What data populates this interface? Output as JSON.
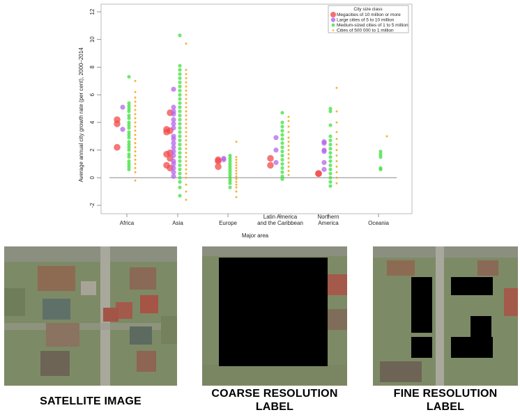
{
  "chart_data": {
    "type": "scatter",
    "ylabel": "Average annual city growth rate (per cent), 2000–2014",
    "xlabel": "Major area",
    "ylim": [
      -2.5,
      12.5
    ],
    "yticks": [
      -2,
      0,
      2,
      4,
      6,
      8,
      10,
      12
    ],
    "categories": [
      "Africa",
      "Asia",
      "Europe",
      "Latin America\nand the Caribbean",
      "Northern\nAmerica",
      "Oceania"
    ],
    "legend": {
      "title": "City size class",
      "position": "top-right",
      "entries": [
        {
          "label": "Megacities of 10 million or more",
          "color": "#f24b4b"
        },
        {
          "label": "Large cities of 5 to 10 million",
          "color": "#b566e8"
        },
        {
          "label": "Medium-sized cities of 1 to 5 million",
          "color": "#3de03d"
        },
        {
          "label": "Cities of 500 000 to 1 million",
          "color": "#f2a51a"
        }
      ]
    },
    "series": [
      {
        "name": "Megacities of 10 million or more",
        "points": [
          [
            0,
            4.2
          ],
          [
            0,
            3.9
          ],
          [
            0,
            2.2
          ],
          [
            1,
            4.7
          ],
          [
            1,
            3.5
          ],
          [
            1,
            3.4
          ],
          [
            1,
            3.3
          ],
          [
            1,
            1.8
          ],
          [
            1,
            1.7
          ],
          [
            1,
            1.4
          ],
          [
            1,
            0.9
          ],
          [
            1,
            0.7
          ],
          [
            2,
            1.3
          ],
          [
            2,
            1.2
          ],
          [
            2,
            0.8
          ],
          [
            3,
            1.4
          ],
          [
            3,
            0.9
          ],
          [
            4,
            0.3
          ],
          [
            4,
            0.3
          ]
        ]
      },
      {
        "name": "Large cities of 5 to 10 million",
        "points": [
          [
            0,
            5.1
          ],
          [
            0,
            3.5
          ],
          [
            1,
            6.4
          ],
          [
            1,
            5.1
          ],
          [
            1,
            4.8
          ],
          [
            1,
            4.6
          ],
          [
            1,
            4.2
          ],
          [
            1,
            3.9
          ],
          [
            1,
            3.6
          ],
          [
            1,
            3.0
          ],
          [
            1,
            2.8
          ],
          [
            1,
            2.5
          ],
          [
            1,
            2.2
          ],
          [
            1,
            1.9
          ],
          [
            1,
            1.6
          ],
          [
            1,
            1.2
          ],
          [
            1,
            1.0
          ],
          [
            1,
            0.7
          ],
          [
            1,
            0.4
          ],
          [
            1,
            0.1
          ],
          [
            2,
            1.4
          ],
          [
            2,
            1.3
          ],
          [
            3,
            2.9
          ],
          [
            3,
            2.0
          ],
          [
            3,
            1.1
          ],
          [
            4,
            2.6
          ],
          [
            4,
            2.5
          ],
          [
            4,
            2.0
          ],
          [
            4,
            1.9
          ],
          [
            4,
            1.1
          ],
          [
            4,
            0.6
          ]
        ]
      },
      {
        "name": "Medium-sized cities of 1 to 5 million",
        "points": [
          [
            0,
            7.3
          ],
          [
            0,
            5.4
          ],
          [
            0,
            5.2
          ],
          [
            0,
            5.0
          ],
          [
            0,
            4.8
          ],
          [
            0,
            4.5
          ],
          [
            0,
            4.3
          ],
          [
            0,
            4.0
          ],
          [
            0,
            3.8
          ],
          [
            0,
            3.6
          ],
          [
            0,
            3.3
          ],
          [
            0,
            3.1
          ],
          [
            0,
            2.9
          ],
          [
            0,
            2.6
          ],
          [
            0,
            2.4
          ],
          [
            0,
            2.2
          ],
          [
            0,
            2.0
          ],
          [
            0,
            1.7
          ],
          [
            0,
            1.5
          ],
          [
            0,
            1.2
          ],
          [
            0,
            1.0
          ],
          [
            0,
            0.8
          ],
          [
            0,
            0.6
          ],
          [
            1,
            10.3
          ],
          [
            1,
            8.1
          ],
          [
            1,
            7.8
          ],
          [
            1,
            7.5
          ],
          [
            1,
            7.2
          ],
          [
            1,
            6.9
          ],
          [
            1,
            6.6
          ],
          [
            1,
            6.3
          ],
          [
            1,
            6.0
          ],
          [
            1,
            5.7
          ],
          [
            1,
            5.4
          ],
          [
            1,
            5.1
          ],
          [
            1,
            4.8
          ],
          [
            1,
            4.5
          ],
          [
            1,
            4.2
          ],
          [
            1,
            3.9
          ],
          [
            1,
            3.6
          ],
          [
            1,
            3.3
          ],
          [
            1,
            3.0
          ],
          [
            1,
            2.7
          ],
          [
            1,
            2.4
          ],
          [
            1,
            2.1
          ],
          [
            1,
            1.8
          ],
          [
            1,
            1.5
          ],
          [
            1,
            1.2
          ],
          [
            1,
            0.9
          ],
          [
            1,
            0.6
          ],
          [
            1,
            0.3
          ],
          [
            1,
            0.0
          ],
          [
            1,
            -0.3
          ],
          [
            1,
            -0.7
          ],
          [
            1,
            -1.3
          ],
          [
            2,
            1.6
          ],
          [
            2,
            1.4
          ],
          [
            2,
            1.2
          ],
          [
            2,
            1.0
          ],
          [
            2,
            0.8
          ],
          [
            2,
            0.6
          ],
          [
            2,
            0.4
          ],
          [
            2,
            0.2
          ],
          [
            2,
            0.0
          ],
          [
            2,
            -0.2
          ],
          [
            2,
            -0.4
          ],
          [
            2,
            -0.7
          ],
          [
            3,
            4.7
          ],
          [
            3,
            4.0
          ],
          [
            3,
            3.7
          ],
          [
            3,
            3.4
          ],
          [
            3,
            3.1
          ],
          [
            3,
            2.8
          ],
          [
            3,
            2.5
          ],
          [
            3,
            2.2
          ],
          [
            3,
            1.9
          ],
          [
            3,
            1.6
          ],
          [
            3,
            1.3
          ],
          [
            3,
            1.0
          ],
          [
            3,
            0.7
          ],
          [
            3,
            0.4
          ],
          [
            3,
            0.1
          ],
          [
            3,
            -0.1
          ],
          [
            4,
            5.0
          ],
          [
            4,
            4.8
          ],
          [
            4,
            3.8
          ],
          [
            4,
            3.0
          ],
          [
            4,
            2.7
          ],
          [
            4,
            2.4
          ],
          [
            4,
            2.1
          ],
          [
            4,
            1.8
          ],
          [
            4,
            1.5
          ],
          [
            4,
            1.2
          ],
          [
            4,
            0.9
          ],
          [
            4,
            0.6
          ],
          [
            4,
            0.3
          ],
          [
            4,
            0.0
          ],
          [
            4,
            -0.3
          ],
          [
            4,
            -0.6
          ],
          [
            5,
            1.9
          ],
          [
            5,
            1.7
          ],
          [
            5,
            1.5
          ],
          [
            5,
            0.7
          ],
          [
            5,
            0.6
          ]
        ]
      },
      {
        "name": "Cities of 500 000 to 1 million",
        "points": [
          [
            0,
            7.0
          ],
          [
            0,
            6.2
          ],
          [
            0,
            5.8
          ],
          [
            0,
            5.5
          ],
          [
            0,
            5.2
          ],
          [
            0,
            4.9
          ],
          [
            0,
            4.6
          ],
          [
            0,
            4.3
          ],
          [
            0,
            4.0
          ],
          [
            0,
            3.7
          ],
          [
            0,
            3.4
          ],
          [
            0,
            3.1
          ],
          [
            0,
            2.8
          ],
          [
            0,
            2.5
          ],
          [
            0,
            2.2
          ],
          [
            0,
            1.9
          ],
          [
            0,
            1.6
          ],
          [
            0,
            1.3
          ],
          [
            0,
            1.0
          ],
          [
            0,
            0.7
          ],
          [
            0,
            0.4
          ],
          [
            0,
            -0.2
          ],
          [
            1,
            9.7
          ],
          [
            1,
            7.8
          ],
          [
            1,
            7.5
          ],
          [
            1,
            7.2
          ],
          [
            1,
            6.9
          ],
          [
            1,
            6.6
          ],
          [
            1,
            6.3
          ],
          [
            1,
            6.0
          ],
          [
            1,
            5.7
          ],
          [
            1,
            5.4
          ],
          [
            1,
            5.1
          ],
          [
            1,
            4.8
          ],
          [
            1,
            4.5
          ],
          [
            1,
            4.2
          ],
          [
            1,
            3.9
          ],
          [
            1,
            3.6
          ],
          [
            1,
            3.3
          ],
          [
            1,
            3.0
          ],
          [
            1,
            2.7
          ],
          [
            1,
            2.4
          ],
          [
            1,
            2.1
          ],
          [
            1,
            1.8
          ],
          [
            1,
            1.5
          ],
          [
            1,
            1.2
          ],
          [
            1,
            0.9
          ],
          [
            1,
            0.6
          ],
          [
            1,
            0.3
          ],
          [
            1,
            0.0
          ],
          [
            1,
            -0.5
          ],
          [
            1,
            -1.0
          ],
          [
            1,
            -1.6
          ],
          [
            2,
            2.6
          ],
          [
            2,
            1.5
          ],
          [
            2,
            1.3
          ],
          [
            2,
            1.1
          ],
          [
            2,
            0.9
          ],
          [
            2,
            0.7
          ],
          [
            2,
            0.5
          ],
          [
            2,
            0.3
          ],
          [
            2,
            0.1
          ],
          [
            2,
            -0.1
          ],
          [
            2,
            -0.3
          ],
          [
            2,
            -0.5
          ],
          [
            2,
            -0.7
          ],
          [
            2,
            -1.0
          ],
          [
            2,
            -1.4
          ],
          [
            3,
            4.4
          ],
          [
            3,
            4.1
          ],
          [
            3,
            3.7
          ],
          [
            3,
            3.3
          ],
          [
            3,
            2.9
          ],
          [
            3,
            2.6
          ],
          [
            3,
            2.3
          ],
          [
            3,
            2.0
          ],
          [
            3,
            1.7
          ],
          [
            3,
            1.4
          ],
          [
            3,
            1.1
          ],
          [
            3,
            0.8
          ],
          [
            3,
            0.5
          ],
          [
            3,
            0.2
          ],
          [
            4,
            6.5
          ],
          [
            4,
            4.8
          ],
          [
            4,
            4.0
          ],
          [
            4,
            3.3
          ],
          [
            4,
            2.8
          ],
          [
            4,
            2.4
          ],
          [
            4,
            2.0
          ],
          [
            4,
            1.6
          ],
          [
            4,
            1.2
          ],
          [
            4,
            0.8
          ],
          [
            4,
            0.4
          ],
          [
            4,
            0.0
          ],
          [
            4,
            -0.4
          ],
          [
            5,
            3.0
          ]
        ]
      }
    ]
  },
  "panels": [
    {
      "caption": "SATELLITE IMAGE"
    },
    {
      "caption": "COARSE RESOLUTION\nLABEL"
    },
    {
      "caption": "FINE RESOLUTION\nLABEL"
    }
  ]
}
